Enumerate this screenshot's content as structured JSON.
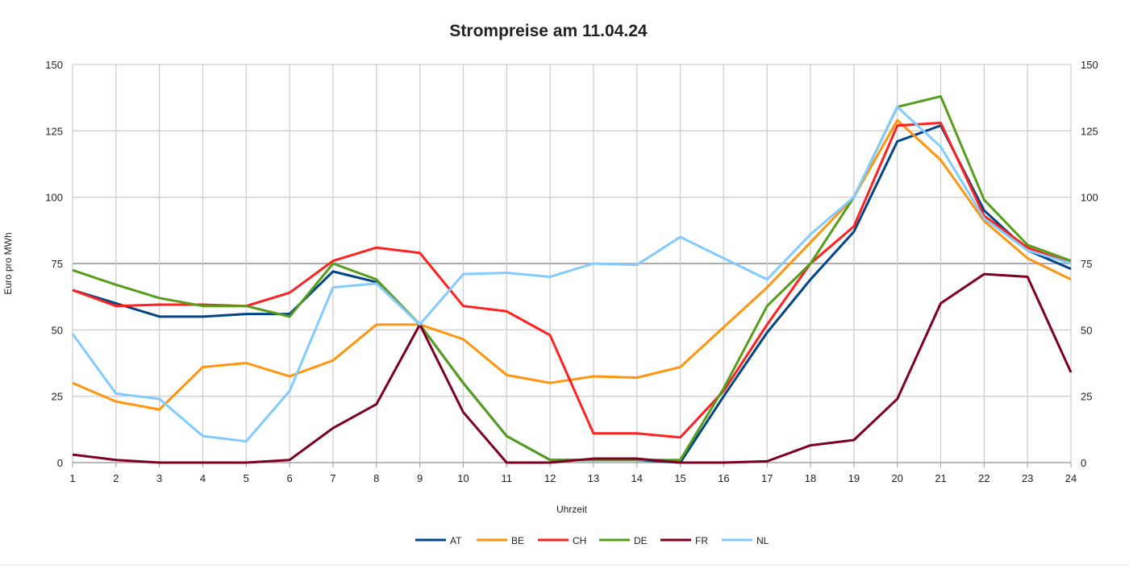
{
  "chart_data": {
    "type": "line",
    "title": "Strompreise am 11.04.24",
    "xlabel": "Uhrzeit",
    "ylabel": "Euro pro MWh",
    "x": [
      1,
      2,
      3,
      4,
      5,
      6,
      7,
      8,
      9,
      10,
      11,
      12,
      13,
      14,
      15,
      16,
      17,
      18,
      19,
      20,
      21,
      22,
      23,
      24
    ],
    "ylim": [
      0,
      150
    ],
    "yticks": [
      0,
      25,
      50,
      75,
      100,
      125,
      150
    ],
    "grid": true,
    "legend": "bottom",
    "series": [
      {
        "name": "AT",
        "color": "#004586",
        "values": [
          65,
          60,
          55,
          55,
          56,
          56,
          72,
          68,
          52,
          30,
          10,
          1,
          1,
          1,
          0,
          25,
          49,
          69,
          87,
          121,
          127,
          95,
          80,
          73
        ]
      },
      {
        "name": "BE",
        "color": "#ff950e",
        "values": [
          30,
          23,
          20,
          36,
          37.5,
          32.5,
          38.5,
          52,
          52,
          46.5,
          33,
          30,
          32.5,
          32,
          36,
          51,
          66,
          83,
          100,
          129,
          114,
          91,
          77,
          69
        ]
      },
      {
        "name": "CH",
        "color": "#ff2020",
        "values": [
          65,
          59,
          59.5,
          59.5,
          59,
          64,
          76,
          81,
          79,
          59,
          57,
          48,
          11,
          11,
          9.5,
          27,
          52,
          75,
          89,
          127,
          128,
          93,
          81,
          75
        ]
      },
      {
        "name": "DE",
        "color": "#579d1c",
        "values": [
          72.5,
          67,
          62,
          59,
          59,
          55,
          75,
          69,
          52,
          30,
          10,
          1,
          1,
          1,
          1,
          28,
          59,
          75,
          100,
          134,
          138,
          99,
          82,
          76
        ]
      },
      {
        "name": "FR",
        "color": "#7e0021",
        "values": [
          3,
          1,
          0,
          0,
          0,
          1,
          13,
          22,
          52,
          19,
          0,
          0,
          1.5,
          1.5,
          0,
          0,
          0.5,
          6.5,
          8.5,
          24,
          60,
          71,
          70,
          34
        ]
      },
      {
        "name": "NL",
        "color": "#83caff",
        "values": [
          48.5,
          26,
          24,
          10,
          8,
          27,
          66,
          67.5,
          52,
          71,
          71.5,
          70,
          75,
          74.5,
          85,
          77,
          69,
          86,
          100,
          134,
          119,
          92,
          80,
          75
        ]
      }
    ]
  }
}
